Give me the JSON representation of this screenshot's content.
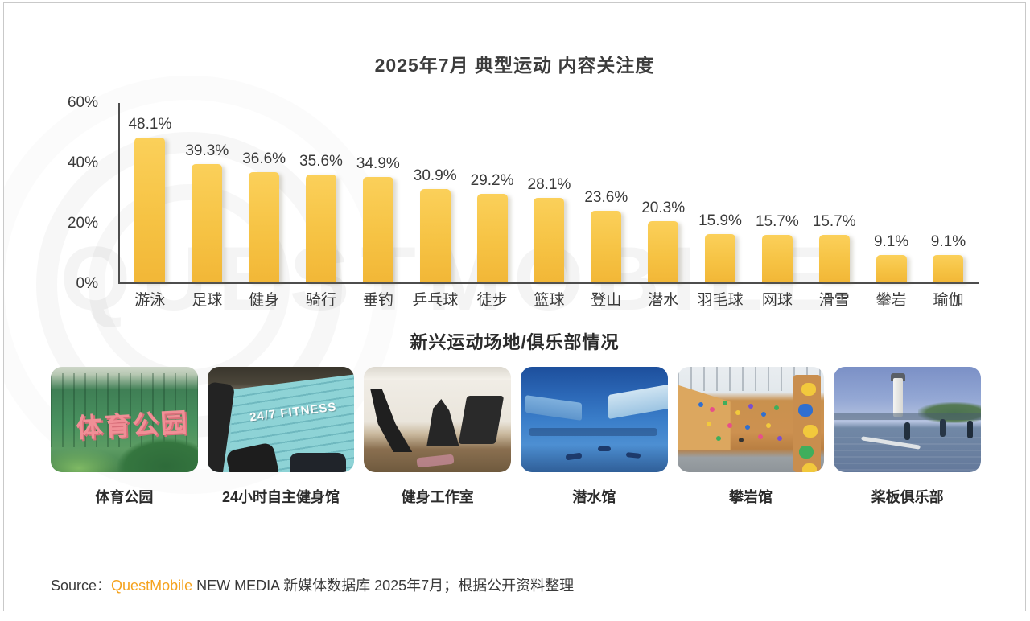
{
  "page": {
    "title": "2025年7月 典型运动 内容关注度",
    "section_title": "新兴运动场地/俱乐部情况",
    "watermark": "QUESTMOBILE",
    "source": {
      "prefix": "Source：",
      "brand": "QuestMobile",
      "suffix": " NEW MEDIA 新媒体数据库 2025年7月；根据公开资料整理"
    }
  },
  "chart_data": {
    "type": "bar",
    "title": "2025年7月 典型运动 内容关注度",
    "categories": [
      "游泳",
      "足球",
      "健身",
      "骑行",
      "垂钓",
      "乒乓球",
      "徒步",
      "篮球",
      "登山",
      "潜水",
      "羽毛球",
      "网球",
      "滑雪",
      "攀岩",
      "瑜伽"
    ],
    "values": [
      48.1,
      39.3,
      36.6,
      35.6,
      34.9,
      30.9,
      29.2,
      28.1,
      23.6,
      20.3,
      15.9,
      15.7,
      15.7,
      9.1,
      9.1
    ],
    "value_labels": [
      "48.1%",
      "39.3%",
      "36.6%",
      "35.6%",
      "34.9%",
      "30.9%",
      "29.2%",
      "28.1%",
      "23.6%",
      "20.3%",
      "15.9%",
      "15.7%",
      "15.7%",
      "9.1%",
      "9.1%"
    ],
    "xlabel": "",
    "ylabel": "",
    "ylim": [
      0,
      60
    ],
    "yticks": [
      "60%",
      "40%",
      "20%",
      "0%"
    ],
    "grid": false,
    "legend": null,
    "bar_color": "#F6C344"
  },
  "venues": [
    {
      "label": "体育公园",
      "sign": "体育公园"
    },
    {
      "label": "24小时自主健身馆",
      "sign": "24/7 FITNESS"
    },
    {
      "label": "健身工作室",
      "sign": ""
    },
    {
      "label": "潜水馆",
      "sign": ""
    },
    {
      "label": "攀岩馆",
      "sign": ""
    },
    {
      "label": "桨板俱乐部",
      "sign": ""
    }
  ],
  "colors": {
    "bar": "#F6C344",
    "axis": "#4D4D4D",
    "text": "#3A3A3A",
    "brand_orange": "#F5A21D"
  }
}
